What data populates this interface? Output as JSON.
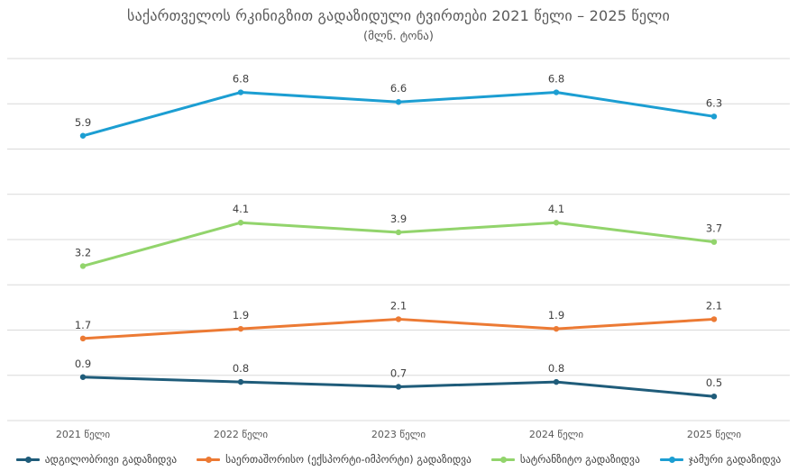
{
  "chart_data": {
    "type": "line",
    "title": "საქართველოს რკინიგზით გადაზიდული ტვირთები 2021 წელი – 2025 წელი",
    "subtitle": "(მლნ. ტონა)",
    "categories": [
      "2021 წელი",
      "2022 წელი",
      "2023 წელი",
      "2024 წელი",
      "2025 წელი"
    ],
    "ylim": [
      0,
      7.5
    ],
    "grid": true,
    "legend_position": "bottom",
    "series": [
      {
        "name": "ადგილობრივი გადაზიდვა",
        "color": "#1f5c7a",
        "values": [
          0.9,
          0.8,
          0.7,
          0.8,
          0.5
        ],
        "labels": [
          "0.9",
          "0.8",
          "0.7",
          "0.8",
          "0.5"
        ]
      },
      {
        "name": "საერთაშორისო (ექსპორტი-იმპორტი) გადაზიდვა",
        "color": "#ec7a34",
        "values": [
          1.7,
          1.9,
          2.1,
          1.9,
          2.1
        ],
        "labels": [
          "1.7",
          "1.9",
          "2.1",
          "1.9",
          "2.1"
        ]
      },
      {
        "name": "სატრანზიტო გადაზიდვა",
        "color": "#92d46c",
        "values": [
          3.2,
          4.1,
          3.9,
          4.1,
          3.7
        ],
        "labels": [
          "3.2",
          "4.1",
          "3.9",
          "4.1",
          "3.7"
        ]
      },
      {
        "name": "ჯამური გადაზიდვა",
        "color": "#1c9ed2",
        "values": [
          5.9,
          6.8,
          6.6,
          6.8,
          6.3
        ],
        "labels": [
          "5.9",
          "6.8",
          "6.6",
          "6.8",
          "6.3"
        ]
      }
    ]
  }
}
